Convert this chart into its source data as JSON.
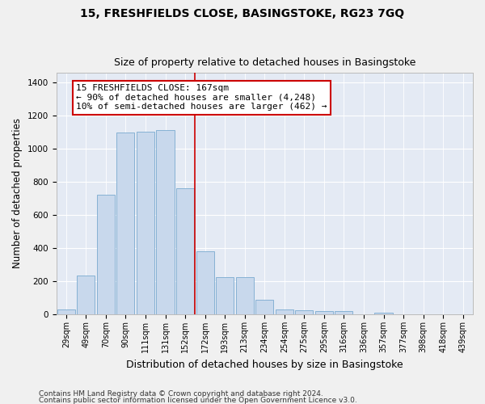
{
  "title": "15, FRESHFIELDS CLOSE, BASINGSTOKE, RG23 7GQ",
  "subtitle": "Size of property relative to detached houses in Basingstoke",
  "xlabel": "Distribution of detached houses by size in Basingstoke",
  "ylabel": "Number of detached properties",
  "bar_color": "#c8d8ec",
  "bar_edge_color": "#7aaacf",
  "background_color": "#e4eaf4",
  "grid_color": "#ffffff",
  "fig_facecolor": "#f0f0f0",
  "categories": [
    "29sqm",
    "49sqm",
    "70sqm",
    "90sqm",
    "111sqm",
    "131sqm",
    "152sqm",
    "172sqm",
    "193sqm",
    "213sqm",
    "234sqm",
    "254sqm",
    "275sqm",
    "295sqm",
    "316sqm",
    "336sqm",
    "357sqm",
    "377sqm",
    "398sqm",
    "418sqm",
    "439sqm"
  ],
  "values": [
    30,
    235,
    720,
    1100,
    1105,
    1115,
    760,
    380,
    225,
    225,
    90,
    30,
    25,
    22,
    18,
    0,
    10,
    0,
    0,
    0,
    0
  ],
  "ylim": [
    0,
    1460
  ],
  "yticks": [
    0,
    200,
    400,
    600,
    800,
    1000,
    1200,
    1400
  ],
  "property_line_x": 6.5,
  "property_line_color": "#cc0000",
  "annotation_text": "15 FRESHFIELDS CLOSE: 167sqm\n← 90% of detached houses are smaller (4,248)\n10% of semi-detached houses are larger (462) →",
  "annotation_box_color": "#cc0000",
  "footer_line1": "Contains HM Land Registry data © Crown copyright and database right 2024.",
  "footer_line2": "Contains public sector information licensed under the Open Government Licence v3.0.",
  "title_fontsize": 10,
  "subtitle_fontsize": 9,
  "ann_fontsize": 8,
  "tick_fontsize": 7,
  "ylabel_fontsize": 8.5,
  "xlabel_fontsize": 9,
  "footer_fontsize": 6.5
}
